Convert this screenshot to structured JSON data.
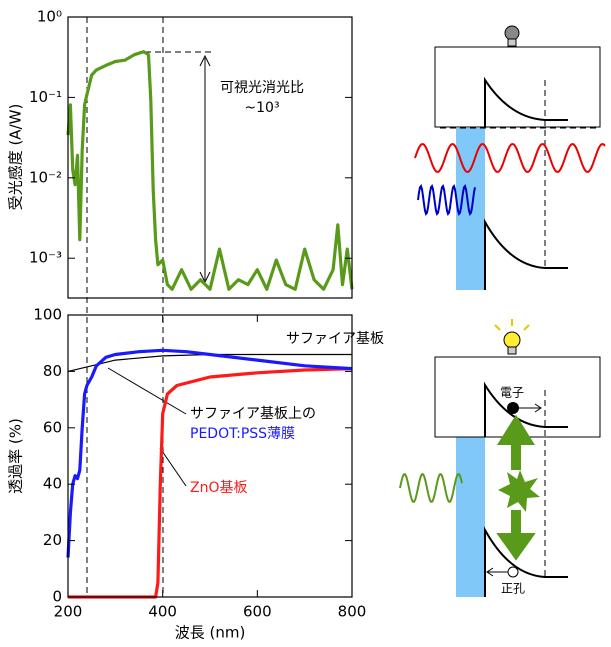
{
  "chart_data": [
    {
      "type": "line",
      "ylabel": "受光感度 (A/W)",
      "log_y": true,
      "xlim": [
        200,
        800
      ],
      "ylim": [
        0.00032,
        1
      ],
      "yticks": [
        {
          "value": 1,
          "label": "10⁰"
        },
        {
          "value": 0.1,
          "label": "10⁻¹"
        },
        {
          "value": 0.01,
          "label": "10⁻²"
        },
        {
          "value": 0.001,
          "label": "10⁻³"
        }
      ],
      "annotations": [
        "可視光消光比",
        "~10³"
      ],
      "series": [
        {
          "color": "#5a9a1a",
          "x": [
            200,
            205,
            210,
            215,
            220,
            225,
            230,
            235,
            240,
            250,
            260,
            280,
            300,
            320,
            340,
            360,
            370,
            375,
            380,
            385,
            390,
            400,
            410,
            420,
            440,
            460,
            480,
            500,
            520,
            540,
            560,
            580,
            600,
            620,
            640,
            660,
            680,
            700,
            720,
            740,
            760,
            770,
            780,
            790,
            800
          ],
          "values": [
            0.034,
            0.081,
            0.0126,
            0.0082,
            0.019,
            0.0017,
            0.022,
            0.081,
            0.108,
            0.19,
            0.22,
            0.25,
            0.28,
            0.29,
            0.34,
            0.37,
            0.34,
            0.093,
            0.0071,
            0.0017,
            0.00083,
            0.00095,
            0.00047,
            0.00041,
            0.00072,
            0.00041,
            0.00054,
            0.00041,
            0.0013,
            0.00041,
            0.00054,
            0.00047,
            0.00072,
            0.00041,
            0.00095,
            0.00047,
            0.00041,
            0.0013,
            0.00054,
            0.00041,
            0.00072,
            0.0026,
            0.00047,
            0.0013,
            0.00041
          ]
        }
      ]
    },
    {
      "type": "line",
      "xlabel": "波長 (nm)",
      "ylabel": "透過率 (%)",
      "xlim": [
        200,
        800
      ],
      "ylim": [
        0,
        100
      ],
      "xticks": [
        200,
        400,
        600,
        800
      ],
      "yticks": [
        0,
        20,
        40,
        60,
        80,
        100
      ],
      "annotations": [
        "サファイア基板",
        "サファイア基板上の",
        "PEDOT:PSS薄膜",
        "ZnO基板"
      ],
      "series": [
        {
          "color": "#000000",
          "x": [
            200,
            250,
            300,
            400,
            500,
            600,
            800
          ],
          "values": [
            80,
            82,
            84,
            85.5,
            86,
            86,
            86
          ]
        },
        {
          "color": "#ff1a1a",
          "x": [
            200,
            380,
            385,
            390,
            395,
            400,
            410,
            430,
            500,
            600,
            700,
            800
          ],
          "values": [
            0,
            0,
            0,
            5,
            40,
            65,
            72,
            75,
            78,
            79.5,
            80.5,
            81
          ]
        },
        {
          "color": "#1a1aff",
          "x": [
            200,
            205,
            210,
            215,
            220,
            225,
            230,
            235,
            240,
            250,
            260,
            280,
            300,
            350,
            400,
            450,
            500,
            600,
            700,
            800
          ],
          "values": [
            14,
            30,
            40,
            43,
            42,
            45,
            60,
            72,
            75,
            78,
            82,
            85,
            86,
            87,
            87.5,
            87,
            86,
            84,
            82,
            81
          ]
        }
      ]
    }
  ],
  "diagram": {
    "electron_label": "電子",
    "hole_label": "正孔"
  }
}
